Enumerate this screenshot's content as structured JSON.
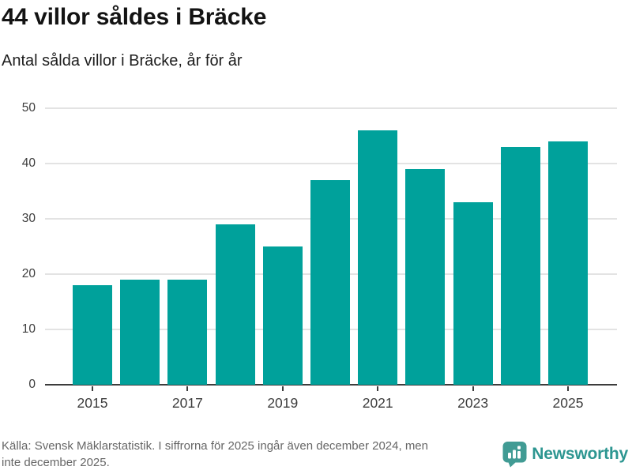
{
  "header": {
    "title": "44 villor såldes i Bräcke",
    "subtitle": "Antal sålda villor i Bräcke, år för år"
  },
  "chart_data": {
    "type": "bar",
    "title": "44 villor såldes i Bräcke",
    "subtitle": "Antal sålda villor i Bräcke, år för år",
    "categories": [
      "2015",
      "2016",
      "2017",
      "2018",
      "2019",
      "2020",
      "2021",
      "2022",
      "2023",
      "2024",
      "2025"
    ],
    "values": [
      18,
      19,
      19,
      29,
      25,
      37,
      46,
      39,
      33,
      43,
      44
    ],
    "xlabel": "",
    "ylabel": "",
    "ylim": [
      0,
      50
    ],
    "yticks": [
      0,
      10,
      20,
      30,
      40,
      50
    ],
    "xtick_labels": [
      "2015",
      "2017",
      "2019",
      "2021",
      "2023",
      "2025"
    ],
    "grid": true,
    "legend": "none",
    "bar_color": "#00a19b"
  },
  "footer": {
    "source_lines": [
      "Källa: Svensk Mäklarstatistik. I siffrorna för 2025 ingår även december 2024, men",
      "inte december 2025."
    ],
    "brand": "Newsworthy",
    "brand_color": "#2d9691",
    "icon_color": "#419b94"
  }
}
